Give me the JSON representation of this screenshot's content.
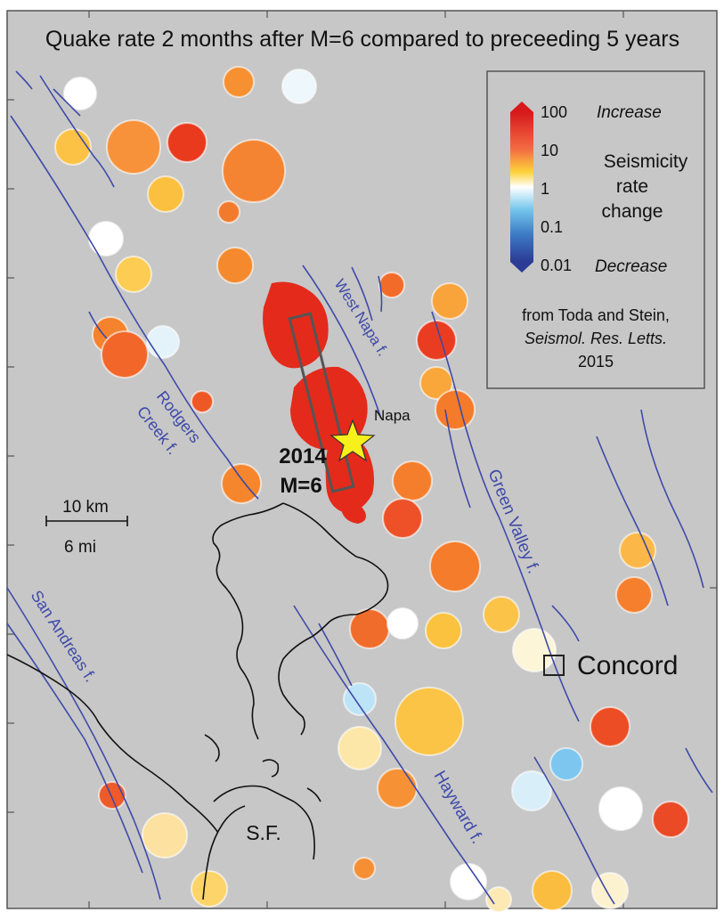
{
  "title": "Quake rate 2 months after M=6 compared to preceeding 5 years",
  "legend": {
    "ticks": [
      "100",
      "10",
      "1",
      "0.1",
      "0.01"
    ],
    "top_word": "Increase",
    "bottom_word": "Decrease",
    "label_lines": [
      "Seismicity",
      "rate",
      "change"
    ],
    "credit_line1": "from Toda and Stein,",
    "credit_line2": "Seismol. Res. Letts.",
    "credit_line3": "2015"
  },
  "scale": {
    "km": "10 km",
    "mi": "6 mi"
  },
  "event": {
    "year": "2014",
    "magnitude": "M=6"
  },
  "places": {
    "napa": "Napa",
    "concord": "Concord",
    "sf": "S.F."
  },
  "faults": {
    "west_napa": "West Napa f.",
    "rodgers_creek": [
      "Rodgers",
      "Creek f."
    ],
    "green_valley": "Green Valley f.",
    "san_andreas": "San Andreas f.",
    "hayward": "Hayward f."
  },
  "colors": {
    "background": "#c7c7c7",
    "fault": "#3f4aa8",
    "coast": "#111111",
    "increase_strong": "#e41a1c",
    "increase_mid": "#f47b20",
    "increase_weak": "#f9d35a",
    "neutral": "#ffffff",
    "decrease_weak": "#7cc8ee",
    "decrease_strong": "#2b3f9e",
    "epicenter_star": "#f7f01a"
  }
}
